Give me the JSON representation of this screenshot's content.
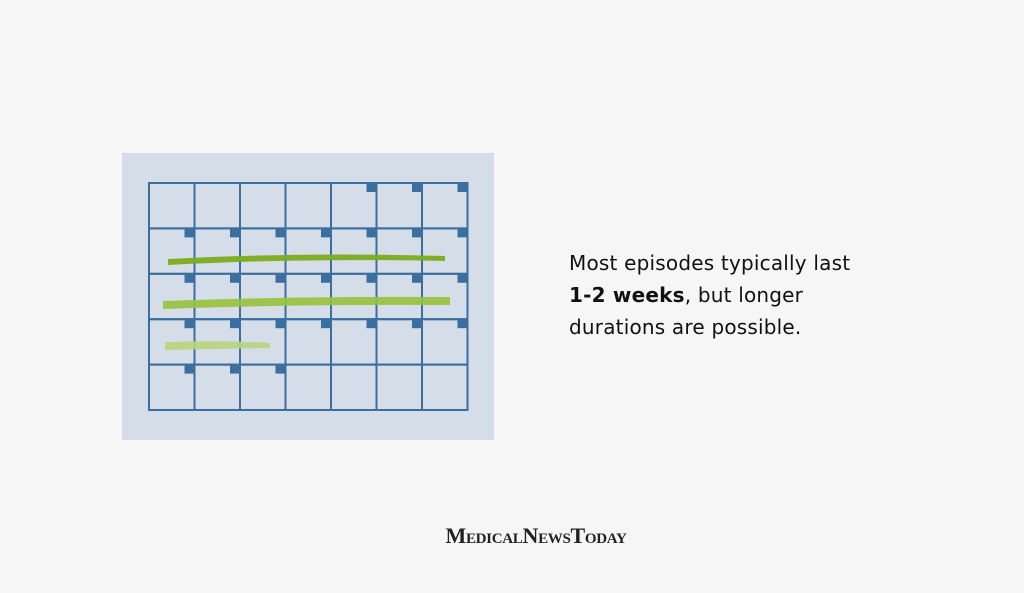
{
  "caption": {
    "line1": "Most episodes typically last",
    "emphasis": "1-2 weeks",
    "line2_rest": ", but longer",
    "line3": "durations are possible."
  },
  "brand": "MedicalNewsToday"
}
